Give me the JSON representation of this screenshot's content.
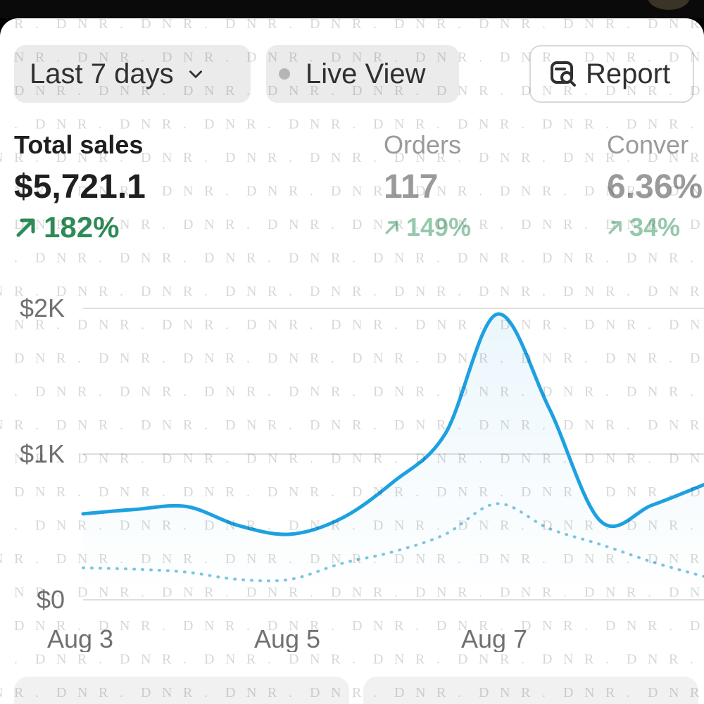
{
  "toolbar": {
    "range_label": "Last 7 days",
    "live_label": "Live View",
    "report_label": "Report"
  },
  "icons": [
    "chevron-down-icon",
    "status-dot-icon",
    "report-search-icon",
    "arrow-up-right-icon"
  ],
  "colors": {
    "accent": "#1da1e0",
    "positive": "#2e8b57",
    "positive_faded": "#96c8ad",
    "muted_text": "#9a9a9a"
  },
  "metrics": [
    {
      "label": "Total sales",
      "value": "$5,721.1",
      "change": "182%"
    },
    {
      "label": "Orders",
      "value": "117",
      "change": "149%"
    },
    {
      "label": "Conver",
      "value": "6.36%",
      "change": "34%"
    }
  ],
  "watermark": "D N R .",
  "chart_data": {
    "type": "line",
    "x": [
      "Aug 3",
      "Aug 3.5",
      "Aug 4",
      "Aug 4.5",
      "Aug 5",
      "Aug 5.5",
      "Aug 6",
      "Aug 6.5",
      "Aug 7",
      "Aug 7.5",
      "Aug 8",
      "Aug 8.5",
      "Aug 9"
    ],
    "xticks": [
      "Aug 3",
      "Aug 5",
      "Aug 7"
    ],
    "yticks": [
      "$0",
      "$1K",
      "$2K"
    ],
    "ylim": [
      0,
      2000
    ],
    "grid": true,
    "series": [
      {
        "style": "solid",
        "values": [
          590,
          620,
          640,
          510,
          450,
          560,
          810,
          1140,
          1960,
          1320,
          540,
          650,
          790
        ]
      },
      {
        "style": "dotted",
        "values": [
          220,
          210,
          190,
          140,
          140,
          250,
          330,
          450,
          660,
          490,
          380,
          260,
          160
        ]
      }
    ]
  }
}
